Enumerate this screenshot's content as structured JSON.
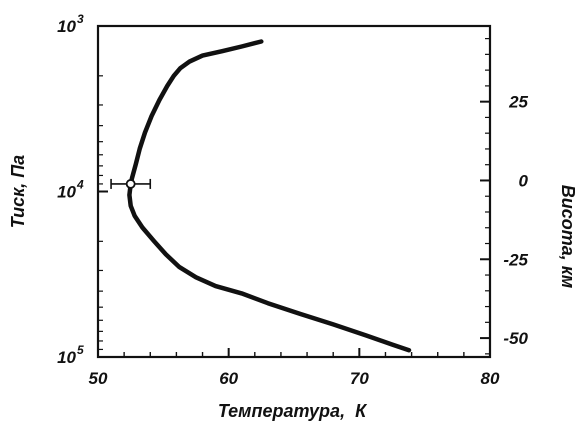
{
  "chart_data": {
    "type": "line",
    "xlabel": "Температура,  К",
    "ylabel": "Тиск, Па",
    "y2label": "Висота, км",
    "xlim": [
      50,
      80
    ],
    "ylim": [
      1000,
      100000
    ],
    "yscale": "log",
    "y_inverted": true,
    "y2lim": [
      -56,
      49
    ],
    "x_ticks": [
      "50",
      "60",
      "70",
      "80"
    ],
    "y_ticks": [
      {
        "value": 1000,
        "base": "10",
        "exp": "3"
      },
      {
        "value": 10000,
        "base": "10",
        "exp": "4"
      },
      {
        "value": 100000,
        "base": "10",
        "exp": "5"
      }
    ],
    "y2_ticks": [
      "25",
      "0",
      "-25",
      "-50"
    ],
    "grid": false,
    "colors": {
      "line": "#111111",
      "marker_fill": "#ffffff"
    },
    "series": [
      {
        "points": [
          [
            62.5,
            1240
          ],
          [
            61.0,
            1330
          ],
          [
            59.5,
            1420
          ],
          [
            58.0,
            1510
          ],
          [
            57.0,
            1640
          ],
          [
            56.3,
            1800
          ],
          [
            55.8,
            2000
          ],
          [
            55.3,
            2300
          ],
          [
            54.7,
            2800
          ],
          [
            54.1,
            3500
          ],
          [
            53.6,
            4400
          ],
          [
            53.2,
            5500
          ],
          [
            52.9,
            6800
          ],
          [
            52.6,
            8300
          ],
          [
            52.5,
            9000
          ],
          [
            52.4,
            10500
          ],
          [
            52.5,
            12200
          ],
          [
            52.8,
            14000
          ],
          [
            53.4,
            16500
          ],
          [
            54.3,
            20000
          ],
          [
            55.2,
            24000
          ],
          [
            56.2,
            28500
          ],
          [
            57.5,
            33000
          ],
          [
            59.0,
            37300
          ],
          [
            61.0,
            41300
          ],
          [
            63.0,
            47300
          ],
          [
            65.5,
            55000
          ],
          [
            68.0,
            63500
          ],
          [
            70.5,
            74000
          ],
          [
            72.5,
            84000
          ],
          [
            73.8,
            91000
          ]
        ]
      }
    ],
    "marker": {
      "x": 52.5,
      "y": 9000,
      "xerr": [
        51.0,
        54.0
      ]
    }
  }
}
